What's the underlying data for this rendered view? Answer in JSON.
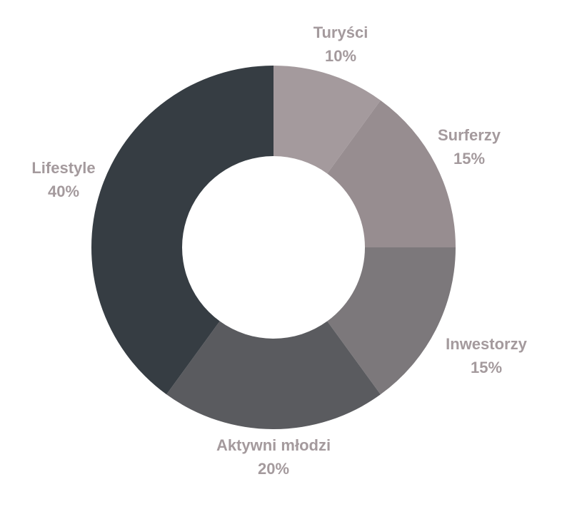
{
  "chart_data": {
    "type": "donut",
    "categories": [
      "Turyści",
      "Surferzy",
      "Inwestorzy",
      "Aktywni młodzi",
      "Lifestyle"
    ],
    "values": [
      10,
      15,
      15,
      20,
      40
    ],
    "value_labels": [
      "10%",
      "15%",
      "15%",
      "20%",
      "40%"
    ],
    "colors": [
      "#a49a9d",
      "#978d90",
      "#7c787b",
      "#5a5b5f",
      "#363d43"
    ]
  }
}
